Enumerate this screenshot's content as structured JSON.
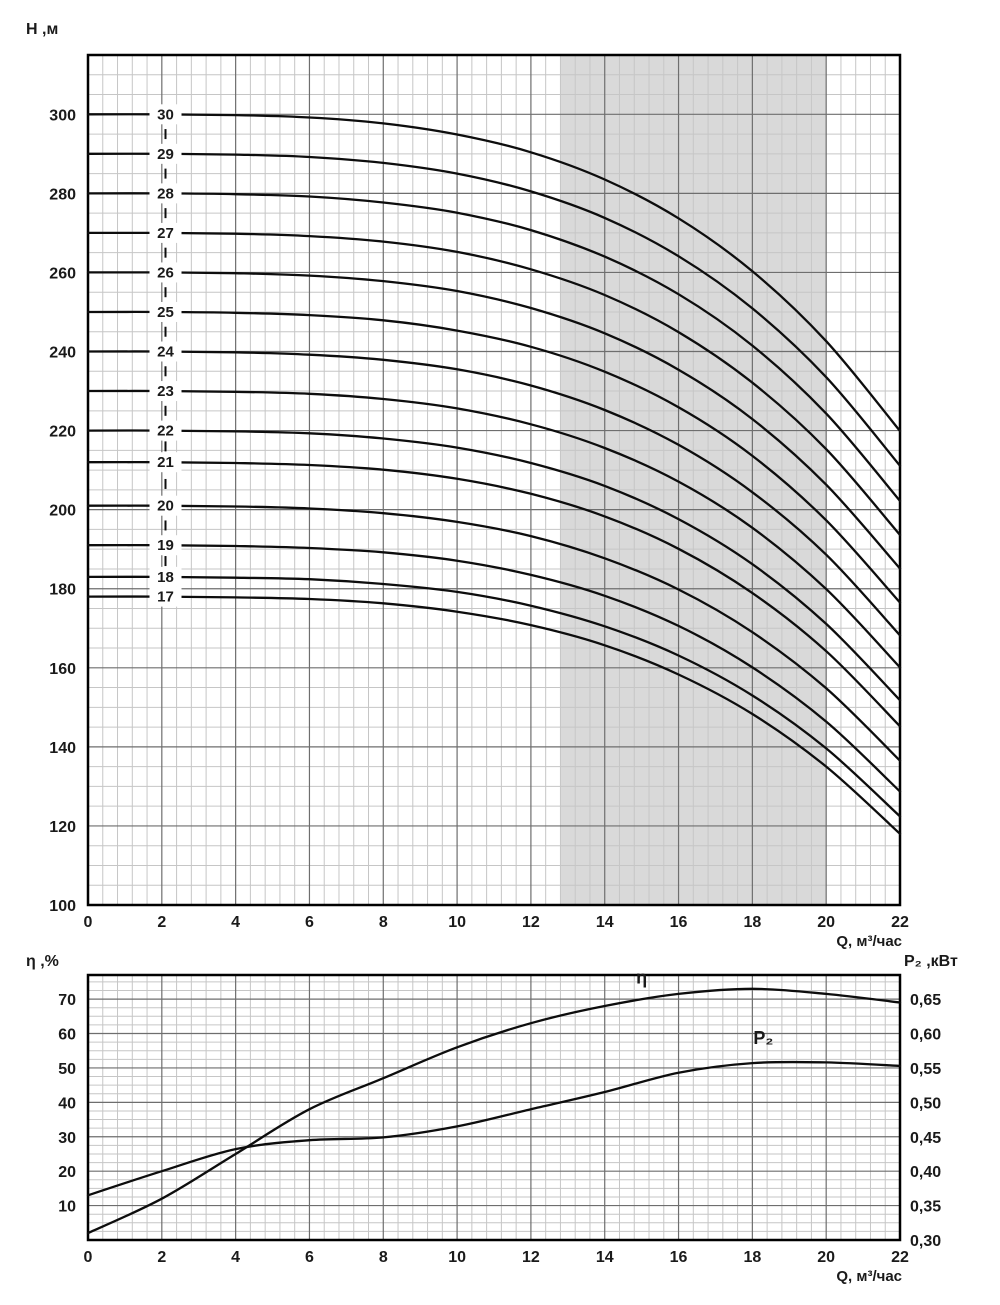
{
  "colors": {
    "text": "#1a1a1a",
    "curve": "#0d0d0d",
    "grid_minor": "#c6c6c6",
    "grid_major": "#6e6e6e",
    "frame": "#000000",
    "shade": "#d9d9d9",
    "label_halo": "#ffffff"
  },
  "chart_data": [
    {
      "id": "head-chart",
      "type": "line",
      "title": "",
      "ylabel": "H ,м",
      "xlabel": "Q, м³/час",
      "xlim": [
        0,
        22
      ],
      "ylim": [
        100,
        315
      ],
      "x_major_step": 2,
      "x_minor_step": 0.4,
      "y_major_step": 20,
      "y_minor_step": 5,
      "grid": true,
      "legend_position": "on-curve-left",
      "x_tick_values": [
        0,
        2,
        4,
        6,
        8,
        10,
        12,
        14,
        16,
        18,
        20,
        22
      ],
      "x_tick_labels": [
        "0",
        "2",
        "4",
        "6",
        "8",
        "10",
        "12",
        "14",
        "16",
        "18",
        "20",
        "22"
      ],
      "y_tick_values": [
        100,
        120,
        140,
        160,
        180,
        200,
        220,
        240,
        260,
        280,
        300
      ],
      "y_tick_labels": [
        "100",
        "120",
        "140",
        "160",
        "180",
        "200",
        "220",
        "240",
        "260",
        "280",
        "300"
      ],
      "shaded_region": {
        "x_start": 12.8,
        "x_end": 20
      },
      "series_label_x": 2.1,
      "x": [
        0,
        2,
        4,
        6,
        8,
        10,
        12,
        14,
        16,
        18,
        20,
        22
      ],
      "series": [
        {
          "name": "30",
          "values": [
            300,
            300,
            299.8,
            299.2,
            297.7,
            294.9,
            290.4,
            283.5,
            273.7,
            260.3,
            242.6,
            219.9
          ]
        },
        {
          "name": "29",
          "values": [
            290,
            290,
            289.8,
            289.2,
            287.7,
            285.0,
            280.5,
            273.8,
            264.1,
            250.9,
            233.5,
            211.1
          ]
        },
        {
          "name": "28",
          "values": [
            280,
            280,
            279.8,
            279.2,
            277.7,
            275.1,
            270.7,
            264.0,
            254.5,
            241.5,
            224.3,
            202.2
          ]
        },
        {
          "name": "27",
          "values": [
            270,
            270,
            269.8,
            269.2,
            267.8,
            265.2,
            260.8,
            254.3,
            244.9,
            232.1,
            215.3,
            193.6
          ]
        },
        {
          "name": "26",
          "values": [
            260,
            260,
            259.8,
            259.2,
            257.8,
            255.3,
            251.0,
            244.6,
            235.4,
            222.9,
            206.3,
            185.1
          ]
        },
        {
          "name": "25",
          "values": [
            250,
            250,
            249.8,
            249.2,
            247.9,
            245.3,
            241.2,
            234.9,
            225.9,
            213.6,
            197.3,
            176.5
          ]
        },
        {
          "name": "24",
          "values": [
            240,
            240,
            239.8,
            239.2,
            237.9,
            235.5,
            231.4,
            225.2,
            216.4,
            204.4,
            188.6,
            168.2
          ]
        },
        {
          "name": "23",
          "values": [
            230,
            230,
            229.8,
            229.3,
            228.0,
            225.6,
            221.6,
            215.6,
            207.1,
            195.4,
            179.9,
            160.1
          ]
        },
        {
          "name": "22",
          "values": [
            220,
            220,
            219.8,
            219.3,
            218.0,
            215.7,
            211.8,
            206.0,
            197.6,
            186.2,
            171.1,
            151.8
          ]
        },
        {
          "name": "21",
          "values": [
            212,
            212,
            211.8,
            211.3,
            210.1,
            207.8,
            204.0,
            198.3,
            190.1,
            178.9,
            164.2,
            145.2
          ]
        },
        {
          "name": "20",
          "values": [
            201,
            201,
            200.8,
            200.3,
            199.1,
            196.9,
            193.3,
            187.7,
            179.8,
            169.0,
            154.8,
            136.5
          ]
        },
        {
          "name": "19",
          "values": [
            191,
            191,
            190.8,
            190.3,
            189.2,
            187.1,
            183.5,
            178.2,
            170.6,
            160.1,
            146.4,
            128.7
          ]
        },
        {
          "name": "18",
          "values": [
            183,
            183,
            182.8,
            182.4,
            181.2,
            179.2,
            175.7,
            170.5,
            163.1,
            153.0,
            139.6,
            122.4
          ]
        },
        {
          "name": "17",
          "values": [
            178,
            178,
            177.8,
            177.4,
            176.3,
            174.2,
            170.8,
            165.7,
            158.3,
            148.3,
            135.0,
            118.0
          ]
        }
      ]
    },
    {
      "id": "eff-power-chart",
      "type": "line",
      "title": "",
      "ylabel_left": "η ,%",
      "ylabel_right": "P₂ ,кВт",
      "xlabel": "Q, м³/час",
      "xlim": [
        0,
        22
      ],
      "ylim_left": [
        0,
        77
      ],
      "ylim_right": [
        0.3,
        0.685
      ],
      "x_major_step": 2,
      "x_minor_step": 0.4,
      "y_major_step": 10,
      "y_minor_step": 2.5,
      "grid": true,
      "x_tick_values": [
        0,
        2,
        4,
        6,
        8,
        10,
        12,
        14,
        16,
        18,
        20,
        22
      ],
      "x_tick_labels": [
        "0",
        "2",
        "4",
        "6",
        "8",
        "10",
        "12",
        "14",
        "16",
        "18",
        "20",
        "22"
      ],
      "y_left_tick_values": [
        10,
        20,
        30,
        40,
        50,
        60,
        70
      ],
      "y_left_tick_labels": [
        "10",
        "20",
        "30",
        "40",
        "50",
        "60",
        "70"
      ],
      "y_right_tick_values": [
        0.3,
        0.35,
        0.4,
        0.45,
        0.5,
        0.55,
        0.6,
        0.65
      ],
      "y_right_tick_labels": [
        "0,30",
        "0,35",
        "0,40",
        "0,45",
        "0,50",
        "0,55",
        "0,60",
        "0,65"
      ],
      "x": [
        0,
        2,
        4,
        6,
        8,
        10,
        12,
        14,
        16,
        18,
        20,
        22
      ],
      "series": [
        {
          "name": "η",
          "axis": "left",
          "label_at": {
            "x": 15.0,
            "y": 74.5
          },
          "values": [
            2,
            12,
            25,
            38,
            47,
            56,
            63,
            68,
            71.5,
            73,
            71.5,
            69
          ]
        },
        {
          "name": "P₂",
          "axis": "right",
          "label_at": {
            "x": 18.3,
            "y": 0.585
          },
          "values": [
            0.365,
            0.4,
            0.432,
            0.445,
            0.449,
            0.465,
            0.49,
            0.515,
            0.543,
            0.557,
            0.558,
            0.553
          ]
        }
      ]
    }
  ]
}
